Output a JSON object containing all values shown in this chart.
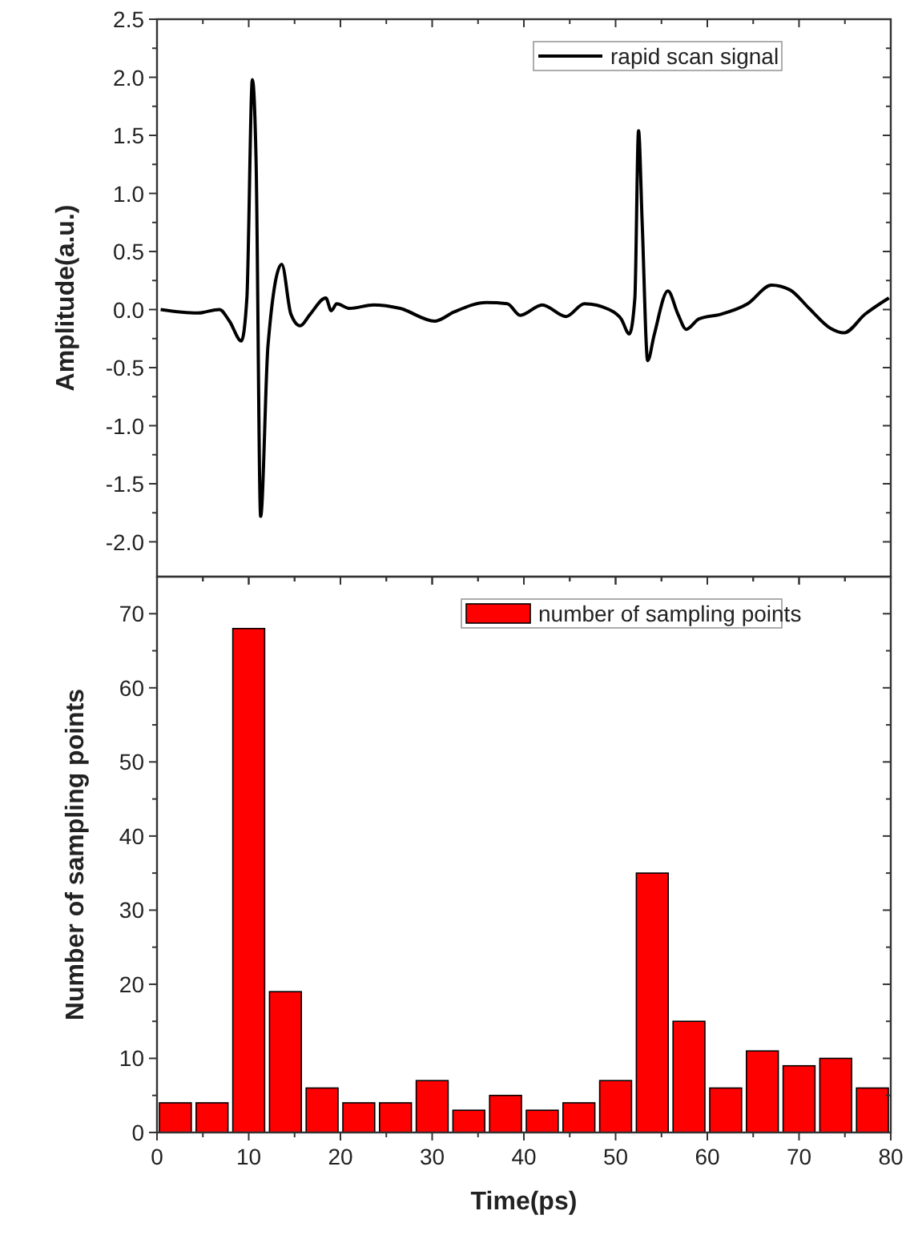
{
  "chart_data": [
    {
      "type": "line",
      "ylabel": "Amplitude(a.u.)",
      "xlim": [
        0,
        80
      ],
      "xticks": [
        0,
        10,
        20,
        30,
        40,
        50,
        60,
        70,
        80
      ],
      "ylim": [
        -2.3,
        2.5
      ],
      "yticks": [
        {
          "value": -2,
          "label": "-2.0"
        },
        -1.5,
        {
          "value": -1,
          "label": "-1.0"
        },
        -0.5,
        {
          "value": 0,
          "label": "0.0"
        },
        0.5,
        {
          "value": 1,
          "label": "1.0"
        },
        1.5,
        {
          "value": 2,
          "label": "2.0"
        },
        2.5
      ],
      "tick_labels": "y",
      "legend": "top right",
      "grid": false,
      "marker": "none",
      "line_style": "solid",
      "series": [
        {
          "name": "rapid scan signal",
          "color": "#000000",
          "x": [
            0.4,
            4.4,
            6.8,
            7.9,
            9.2,
            9.8,
            10.4,
            10.8,
            11.3,
            12.1,
            13.6,
            14.6,
            15.6,
            16.7,
            18.4,
            19,
            19.6,
            21,
            23.6,
            26.5,
            30.3,
            32.4,
            35.9,
            38.2,
            39.6,
            42,
            44.6,
            46.6,
            49.3,
            50.6,
            51.5,
            52.1,
            52.5,
            52.9,
            53.5,
            54.2,
            55.7,
            56.8,
            57.7,
            59.1,
            61.5,
            64.4,
            67,
            69,
            71.1,
            73.4,
            74.9,
            77.2,
            79.8
          ],
          "values": [
            0,
            -0.03,
            0,
            -0.1,
            -0.27,
            0.1,
            1.98,
            1.29,
            -1.78,
            -0.31,
            0.39,
            -0.04,
            -0.14,
            -0.04,
            0.1,
            -0.01,
            0.05,
            0.01,
            0.04,
            0.01,
            -0.1,
            -0.02,
            0.06,
            0.05,
            -0.05,
            0.04,
            -0.06,
            0.05,
            0,
            -0.08,
            -0.21,
            0.1,
            1.54,
            0.74,
            -0.44,
            -0.22,
            0.16,
            -0.04,
            -0.17,
            -0.08,
            -0.04,
            0.05,
            0.21,
            0.17,
            0.01,
            -0.16,
            -0.2,
            -0.04,
            0.1
          ]
        }
      ]
    },
    {
      "type": "histogram",
      "xlabel": "Time(ps)",
      "ylabel": "Number of sampling points",
      "xlim": [
        0,
        80
      ],
      "xticks": [
        0,
        10,
        20,
        30,
        40,
        50,
        60,
        70,
        80
      ],
      "ylim": [
        0,
        75
      ],
      "yticks": [
        0,
        10,
        20,
        30,
        40,
        50,
        60,
        70
      ],
      "legend": "top right",
      "grid": false,
      "bins": [
        0,
        4,
        8,
        12,
        16,
        20,
        24,
        28,
        32,
        36,
        40,
        44,
        48,
        52,
        56,
        60,
        64,
        68,
        72,
        76,
        80
      ],
      "series": [
        {
          "name": "number of sampling points",
          "color": "#ff0000",
          "values": [
            4,
            4,
            68,
            19,
            6,
            4,
            4,
            7,
            3,
            5,
            3,
            4,
            7,
            35,
            15,
            6,
            11,
            9,
            10,
            6
          ]
        }
      ]
    }
  ]
}
